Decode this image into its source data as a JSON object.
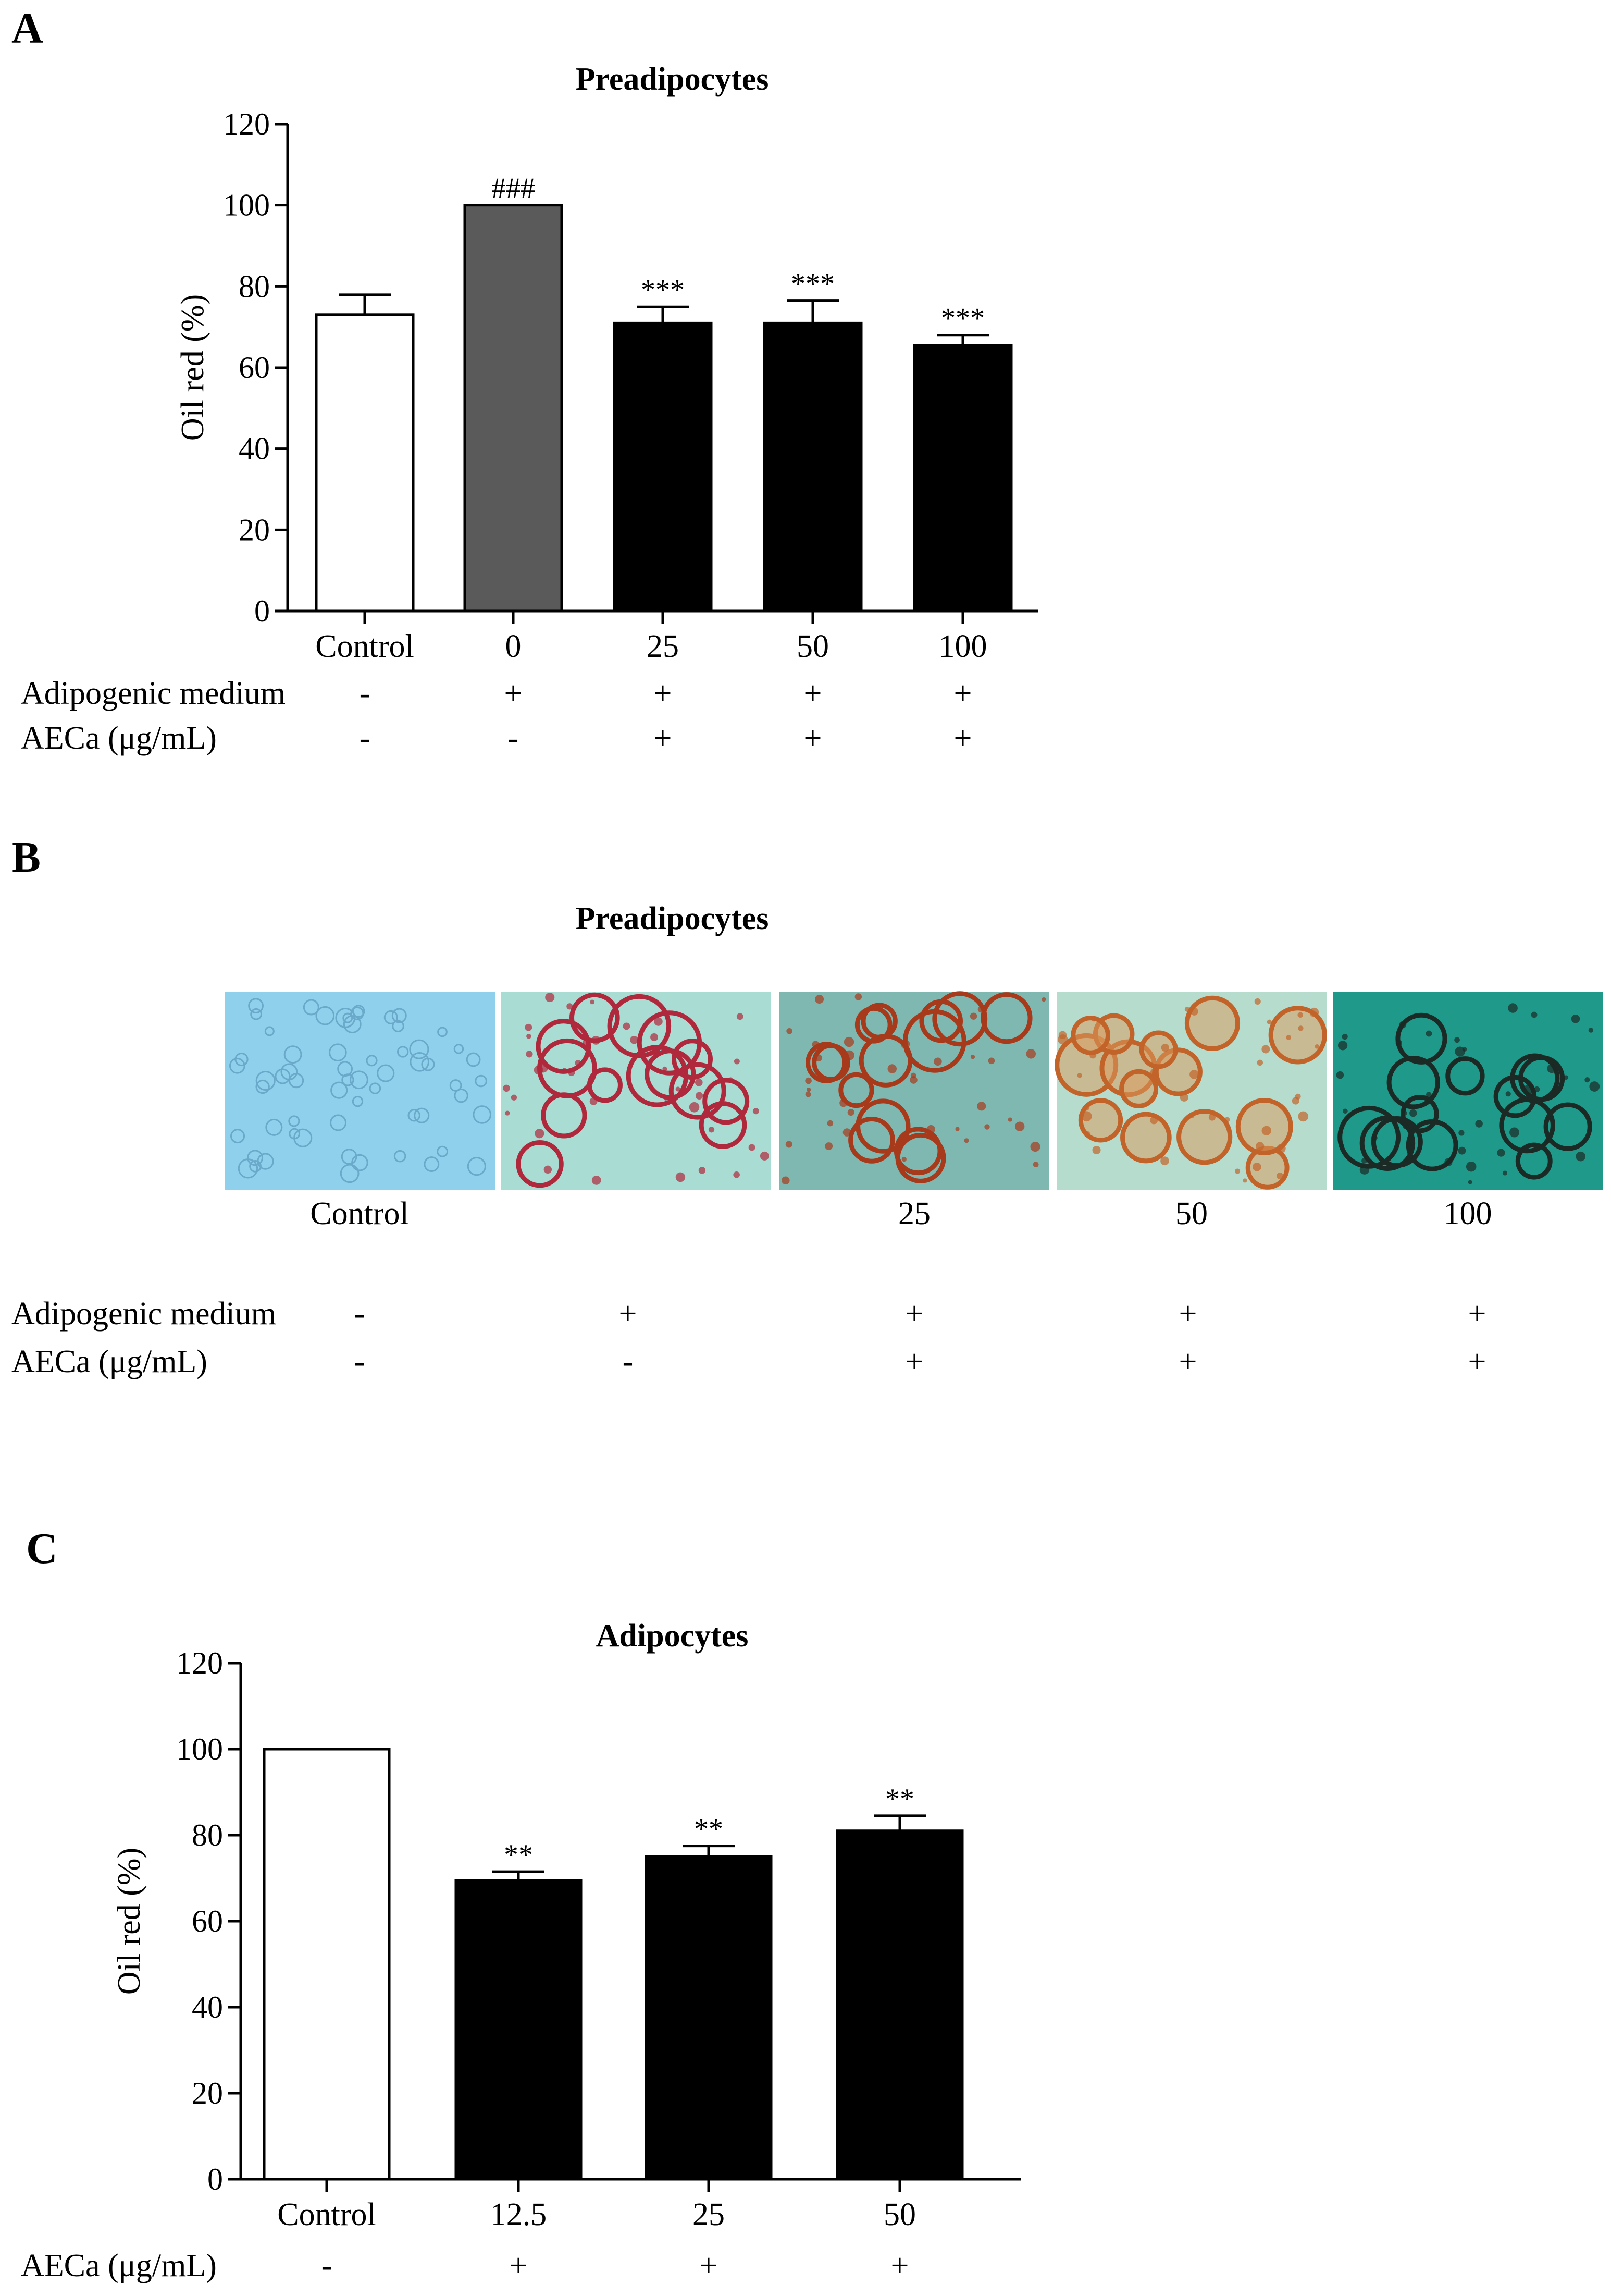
{
  "panels": {
    "A": {
      "letter": "A"
    },
    "B": {
      "letter": "B",
      "title": "Preadipocytes",
      "image_labels": [
        "Control",
        "",
        "25",
        "50",
        "100"
      ],
      "rows": [
        {
          "label": "Adipogenic medium",
          "values": [
            "-",
            "+",
            "+",
            "+",
            "+"
          ]
        },
        {
          "label": "AECa (μg/mL)",
          "values": [
            "-",
            "-",
            "+",
            "+",
            "+"
          ]
        }
      ],
      "micrographs": [
        {
          "name": "control",
          "bg": "#8fd0ec",
          "stain": "none"
        },
        {
          "name": "medium",
          "bg": "#a9dcd2",
          "stain": "#b0283c"
        },
        {
          "name": "aeca-25",
          "bg": "#7fb8b0",
          "stain": "#a83a1c"
        },
        {
          "name": "aeca-50",
          "bg": "#b6dccd",
          "stain": "#c2642a"
        },
        {
          "name": "aeca-100",
          "bg": "#1f9a8a",
          "stain": "#1b2a25"
        }
      ]
    },
    "C": {
      "letter": "C"
    }
  },
  "chart_data": [
    {
      "type": "bar",
      "title": "Preadipocytes",
      "ylabel": "Oil red (%)",
      "xlabel": "",
      "ylim": [
        0,
        120
      ],
      "yticks": [
        0,
        20,
        40,
        60,
        80,
        100,
        120
      ],
      "categories": [
        "Control",
        "0",
        "25",
        "50",
        "100"
      ],
      "values": [
        73,
        100,
        71,
        71,
        65.5
      ],
      "errors": [
        5,
        0,
        4,
        5.5,
        2.5
      ],
      "colors": [
        "#ffffff",
        "#5a5a5a",
        "#000000",
        "#000000",
        "#000000"
      ],
      "significance": [
        "",
        "###",
        "***",
        "***",
        "***"
      ],
      "rows": [
        {
          "label": "Adipogenic medium",
          "values": [
            "-",
            "+",
            "+",
            "+",
            "+"
          ]
        },
        {
          "label": "AECa (μg/mL)",
          "values": [
            "-",
            "-",
            "+",
            "+",
            "+"
          ]
        }
      ]
    },
    {
      "type": "bar",
      "title": "Adipocytes",
      "ylabel": "Oil red (%)",
      "xlabel": "",
      "ylim": [
        0,
        120
      ],
      "yticks": [
        0,
        20,
        40,
        60,
        80,
        100,
        120
      ],
      "categories": [
        "Control",
        "12.5",
        "25",
        "50"
      ],
      "values": [
        100,
        69.5,
        75,
        81
      ],
      "errors": [
        0,
        2,
        2.5,
        3.5
      ],
      "colors": [
        "#ffffff",
        "#000000",
        "#000000",
        "#000000"
      ],
      "significance": [
        "",
        "**",
        "**",
        "**"
      ],
      "rows": [
        {
          "label": "AECa (μg/mL)",
          "values": [
            "-",
            "+",
            "+",
            "+"
          ]
        }
      ]
    }
  ]
}
